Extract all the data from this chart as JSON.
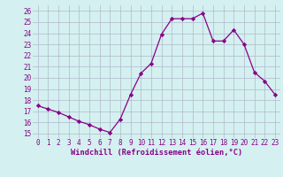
{
  "hours": [
    0,
    1,
    2,
    3,
    4,
    5,
    6,
    7,
    8,
    9,
    10,
    11,
    12,
    13,
    14,
    15,
    16,
    17,
    18,
    19,
    20,
    21,
    22,
    23
  ],
  "values": [
    17.5,
    17.2,
    16.9,
    16.5,
    16.1,
    15.8,
    15.4,
    15.1,
    16.3,
    18.5,
    20.4,
    21.3,
    23.9,
    25.3,
    25.3,
    25.3,
    25.8,
    23.3,
    23.3,
    24.3,
    23.0,
    20.5,
    19.7,
    18.5
  ],
  "line_color": "#880088",
  "marker": "D",
  "marker_size": 2.2,
  "bg_color": "#d4f0f0",
  "grid_color": "#b0b8cc",
  "xlabel": "Windchill (Refroidissement éolien,°C)",
  "xlabel_color": "#880088",
  "ylabel_ticks": [
    15,
    16,
    17,
    18,
    19,
    20,
    21,
    22,
    23,
    24,
    25,
    26
  ],
  "ylim": [
    14.6,
    26.5
  ],
  "xlim": [
    -0.5,
    23.5
  ],
  "tick_label_color": "#880088",
  "tick_fontsize": 5.5,
  "xlabel_fontsize": 6.2,
  "linewidth": 0.9
}
